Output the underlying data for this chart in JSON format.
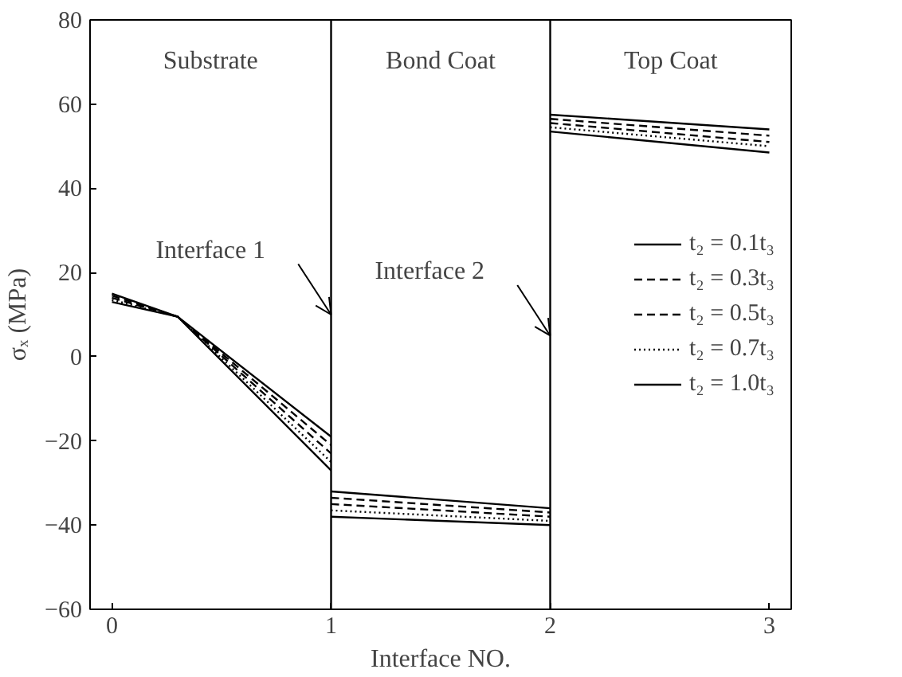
{
  "chart_data": {
    "type": "line",
    "xlabel": "Interface NO.",
    "ylabel": "σₓ (MPa)",
    "xlim": [
      -0.1,
      3.1
    ],
    "xticks": [
      0,
      1,
      2,
      3
    ],
    "ylim": [
      -60,
      80
    ],
    "yticks": [
      -60,
      -40,
      -20,
      0,
      20,
      40,
      60,
      80
    ],
    "grid": false,
    "legend": "right",
    "series": [
      {
        "name": "t₂ = 0.1t₃",
        "color": "#000000",
        "line_style": "solid",
        "x": [
          0,
          0.3,
          1
        ],
        "values": [
          15,
          9.5,
          -19
        ]
      },
      {
        "name": "t₂ = 0.3t₃",
        "color": "#000000",
        "line_style": "dashed",
        "x": [
          0,
          0.3,
          1
        ],
        "values": [
          14.5,
          9.5,
          -21
        ]
      },
      {
        "name": "t₂ = 0.5t₃",
        "color": "#000000",
        "line_style": "dashed",
        "x": [
          0,
          0.3,
          1
        ],
        "values": [
          14,
          9.5,
          -23
        ]
      },
      {
        "name": "t₂ = 0.7t₃",
        "color": "#000000",
        "line_style": "dotted",
        "x": [
          0,
          0.3,
          1
        ],
        "values": [
          13.5,
          9.5,
          -25
        ]
      },
      {
        "name": "t₂ = 1.0t₃",
        "color": "#000000",
        "line_style": "solid",
        "x": [
          0,
          0.3,
          1
        ],
        "values": [
          13,
          9.5,
          -27
        ]
      },
      {
        "color": "#000000",
        "line_style": "solid",
        "x": [
          1,
          2
        ],
        "values": [
          -32,
          -36
        ]
      },
      {
        "color": "#000000",
        "line_style": "dashed",
        "x": [
          1,
          2
        ],
        "values": [
          -33.5,
          -37
        ]
      },
      {
        "color": "#000000",
        "line_style": "dashed",
        "x": [
          1,
          2
        ],
        "values": [
          -35,
          -38
        ]
      },
      {
        "color": "#000000",
        "line_style": "dotted",
        "x": [
          1,
          2
        ],
        "values": [
          -36.5,
          -39
        ]
      },
      {
        "color": "#000000",
        "line_style": "solid",
        "x": [
          1,
          2
        ],
        "values": [
          -38,
          -40
        ]
      },
      {
        "color": "#000000",
        "line_style": "solid",
        "x": [
          2,
          3
        ],
        "values": [
          57.5,
          54
        ]
      },
      {
        "color": "#000000",
        "line_style": "dashed",
        "x": [
          2,
          3
        ],
        "values": [
          56.5,
          52.5
        ]
      },
      {
        "color": "#000000",
        "line_style": "dashed",
        "x": [
          2,
          3
        ],
        "values": [
          55.5,
          51
        ]
      },
      {
        "color": "#000000",
        "line_style": "dotted",
        "x": [
          2,
          3
        ],
        "values": [
          54.5,
          50
        ]
      },
      {
        "color": "#000000",
        "line_style": "solid",
        "x": [
          2,
          3
        ],
        "values": [
          53.5,
          48.5
        ]
      }
    ],
    "ref_lines": [
      {
        "axis": "x",
        "value": 1,
        "color": "#000000"
      },
      {
        "axis": "x",
        "value": 2,
        "color": "#000000"
      }
    ],
    "annotations": [
      "Substrate",
      "Bond Coat",
      "Top Coat",
      {
        "text": "Interface 1",
        "x": 1,
        "y": 10
      },
      {
        "text": "Interface 2",
        "x": 2,
        "y": 5
      }
    ]
  }
}
